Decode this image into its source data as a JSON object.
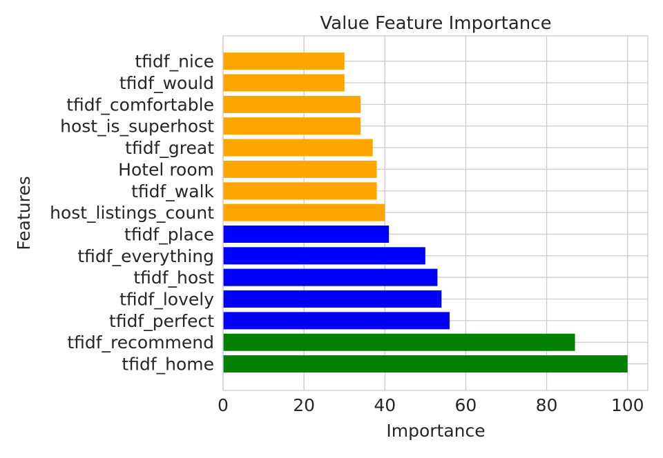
{
  "chart_data": {
    "type": "bar",
    "orientation": "horizontal",
    "title": "Value Feature Importance",
    "xlabel": "Importance",
    "ylabel": "Features",
    "xlim": [
      0,
      105
    ],
    "xticks": [
      0,
      20,
      40,
      60,
      80,
      100
    ],
    "grid": true,
    "legend": "none",
    "categories": [
      "tfidf_home",
      "tfidf_recommend",
      "tfidf_perfect",
      "tfidf_lovely",
      "tfidf_host",
      "tfidf_everything",
      "tfidf_place",
      "host_listings_count",
      "tfidf_walk",
      "Hotel room",
      "tfidf_great",
      "host_is_superhost",
      "tfidf_comfortable",
      "tfidf_would",
      "tfidf_nice"
    ],
    "values": [
      100,
      87,
      56,
      54,
      53,
      50,
      41,
      40,
      38,
      38,
      37,
      34,
      34,
      30,
      30
    ],
    "bar_colors": [
      "#008000",
      "#008000",
      "#0000ff",
      "#0000ff",
      "#0000ff",
      "#0000ff",
      "#0000ff",
      "#ffa500",
      "#ffa500",
      "#ffa500",
      "#ffa500",
      "#ffa500",
      "#ffa500",
      "#ffa500",
      "#ffa500"
    ]
  }
}
